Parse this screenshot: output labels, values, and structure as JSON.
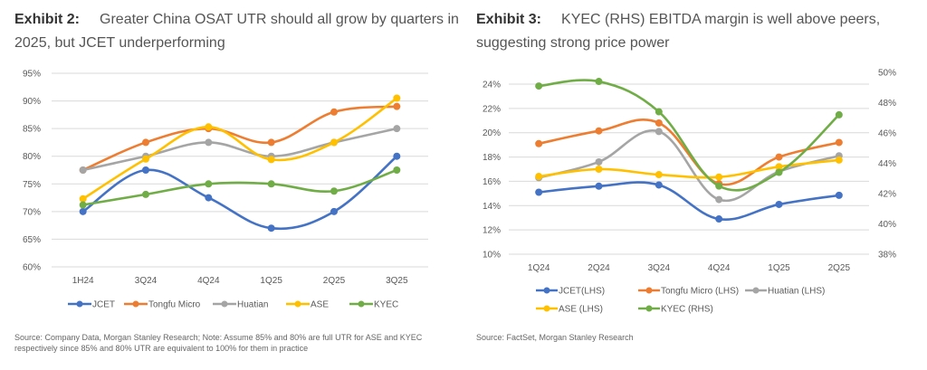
{
  "exhibit2": {
    "label": "Exhibit 2:",
    "title": "Greater China OSAT UTR should all grow by quarters in 2025, but JCET underperforming",
    "source": "Source: Company Data, Morgan Stanley Research; Note: Assume 85% and 80% are full UTR for ASE and KYEC respectively since 85% and 80% UTR are equivalent to 100% for them in practice"
  },
  "exhibit3": {
    "label": "Exhibit 3:",
    "title": "KYEC (RHS) EBITDA margin is well above peers, suggesting strong price power",
    "source": "Source: FactSet, Morgan Stanley Research"
  },
  "chart_data": [
    {
      "type": "line",
      "title": "Greater China OSAT UTR should all grow by quarters in 2025, but JCET underperforming",
      "xlabel": "",
      "ylabel": "",
      "ylim": [
        60,
        95
      ],
      "yticks": [
        95,
        90,
        85,
        80,
        75,
        70,
        65,
        60
      ],
      "ytick_labels": [
        "95%",
        "90%",
        "85%",
        "80%",
        "75%",
        "70%",
        "65%",
        "60%"
      ],
      "grid": true,
      "legend_position": "bottom",
      "categories": [
        "1H24",
        "3Q24",
        "4Q24",
        "1Q25",
        "2Q25",
        "3Q25"
      ],
      "series": [
        {
          "name": "JCET",
          "color": "#4472C4",
          "values": [
            70,
            77.5,
            72.5,
            67,
            70,
            80
          ]
        },
        {
          "name": "Tongfu Micro",
          "color": "#ED7D31",
          "values": [
            77.5,
            82.5,
            85,
            82.5,
            88,
            89
          ]
        },
        {
          "name": "Huatian",
          "color": "#A5A5A5",
          "values": [
            77.5,
            80,
            82.5,
            80,
            82.5,
            85
          ]
        },
        {
          "name": "ASE",
          "color": "#FFC000",
          "values": [
            72.3,
            79.5,
            85.3,
            79.4,
            82.5,
            90.5
          ]
        },
        {
          "name": "KYEC",
          "color": "#70AD47",
          "values": [
            71.2,
            73.1,
            75,
            75,
            73.7,
            77.5
          ]
        }
      ]
    },
    {
      "type": "line",
      "title": "KYEC (RHS) EBITDA margin is well above peers, suggesting strong price power",
      "xlabel": "",
      "ylabel": "",
      "ylim": [
        10,
        24
      ],
      "yticks": [
        24,
        22,
        20,
        18,
        16,
        14,
        12,
        10
      ],
      "ytick_labels": [
        "24%",
        "22%",
        "20%",
        "18%",
        "16%",
        "14%",
        "12%",
        "10%"
      ],
      "y2lim": [
        38,
        50
      ],
      "y2ticks": [
        50,
        48,
        46,
        44,
        42,
        40,
        38
      ],
      "y2tick_labels": [
        "50%",
        "48%",
        "46%",
        "44%",
        "42%",
        "40%",
        "38%"
      ],
      "grid": true,
      "legend_position": "bottom",
      "categories": [
        "1Q24",
        "2Q24",
        "3Q24",
        "4Q24",
        "1Q25",
        "2Q25"
      ],
      "series": [
        {
          "name": "JCET(LHS)",
          "axis": "left",
          "color": "#4472C4",
          "values": [
            15.1,
            15.6,
            15.7,
            12.9,
            14.1,
            14.85
          ]
        },
        {
          "name": "Tongfu Micro (LHS)",
          "axis": "left",
          "color": "#ED7D31",
          "values": [
            19.1,
            20.15,
            20.8,
            15.8,
            18.0,
            19.2
          ]
        },
        {
          "name": "Huatian (LHS)",
          "axis": "left",
          "color": "#A5A5A5",
          "values": [
            16.3,
            17.6,
            20.1,
            14.5,
            16.8,
            18.1
          ]
        },
        {
          "name": "ASE (LHS)",
          "axis": "left",
          "color": "#FFC000",
          "values": [
            16.4,
            17.0,
            16.55,
            16.35,
            17.2,
            17.75
          ]
        },
        {
          "name": "KYEC (RHS)",
          "axis": "right",
          "color": "#70AD47",
          "values": [
            49.1,
            49.4,
            47.4,
            42.5,
            43.4,
            47.2
          ]
        }
      ]
    }
  ]
}
